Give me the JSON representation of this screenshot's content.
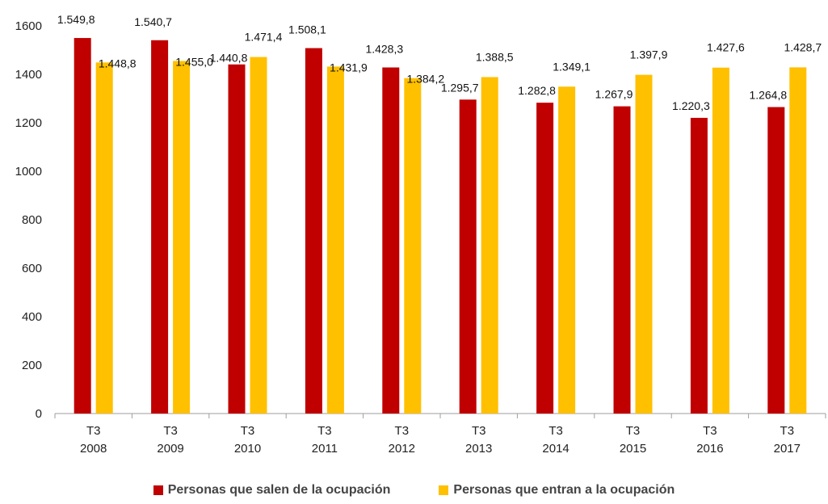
{
  "chart_data": {
    "type": "bar",
    "title": "",
    "xlabel": "",
    "ylabel": "",
    "ylim": [
      0,
      1600
    ],
    "yticks": [
      "0",
      "200",
      "400",
      "600",
      "800",
      "1000",
      "1200",
      "1400",
      "1600"
    ],
    "ytick_values": [
      0,
      200,
      400,
      600,
      800,
      1000,
      1200,
      1400,
      1600
    ],
    "grid": false,
    "legend_position": "bottom",
    "categories": [
      [
        "T3",
        "2008"
      ],
      [
        "T3",
        "2009"
      ],
      [
        "T3",
        "2010"
      ],
      [
        "T3",
        "2011"
      ],
      [
        "T3",
        "2012"
      ],
      [
        "T3",
        "2013"
      ],
      [
        "T3",
        "2014"
      ],
      [
        "T3",
        "2015"
      ],
      [
        "T3",
        "2016"
      ],
      [
        "T3",
        "2017"
      ]
    ],
    "series": [
      {
        "name": "Personas que salen de la ocupación",
        "color": "#C00000",
        "values": [
          1549.8,
          1540.7,
          1440.8,
          1508.1,
          1428.3,
          1295.7,
          1282.8,
          1267.9,
          1220.3,
          1264.8
        ],
        "labels": [
          "1.549,8",
          "1.540,7",
          "1.440,8",
          "1.508,1",
          "1.428,3",
          "1.295,7",
          "1.282,8",
          "1.267,9",
          "1.220,3",
          "1.264,8"
        ]
      },
      {
        "name": "Personas que entran a la ocupación",
        "color": "#FFC000",
        "values": [
          1448.8,
          1455.0,
          1471.4,
          1431.9,
          1384.2,
          1388.5,
          1349.1,
          1397.9,
          1427.6,
          1428.7
        ],
        "labels": [
          "1.448,8",
          "1.455,0",
          "1.471,4",
          "1.431,9",
          "1.384,2",
          "1.388,5",
          "1.349,1",
          "1.397,9",
          "1.427,6",
          "1.428,7"
        ]
      }
    ]
  }
}
